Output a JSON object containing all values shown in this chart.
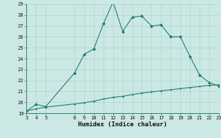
{
  "xlabel": "Humidex (Indice chaleur)",
  "bg_color": "#cce8e4",
  "line_color": "#1a7a6e",
  "marker_color": "#1a7a6e",
  "xlim": [
    3,
    23
  ],
  "ylim": [
    19,
    29
  ],
  "xticks": [
    3,
    4,
    5,
    8,
    9,
    10,
    11,
    12,
    13,
    14,
    15,
    16,
    17,
    18,
    19,
    20,
    21,
    22,
    23
  ],
  "yticks": [
    19,
    20,
    21,
    22,
    23,
    24,
    25,
    26,
    27,
    28,
    29
  ],
  "curve1_x": [
    3,
    4,
    5,
    8,
    9,
    10,
    11,
    12,
    13,
    14,
    15,
    16,
    17,
    18,
    19,
    20,
    21,
    22,
    23
  ],
  "curve1_y": [
    19.2,
    19.8,
    19.6,
    22.7,
    24.4,
    24.9,
    27.2,
    29.2,
    26.5,
    27.8,
    27.9,
    27.0,
    27.1,
    26.0,
    26.0,
    24.2,
    22.5,
    21.8,
    21.5
  ],
  "curve2_x": [
    3,
    4,
    5,
    8,
    9,
    10,
    11,
    12,
    13,
    14,
    15,
    16,
    17,
    18,
    19,
    20,
    21,
    22,
    23
  ],
  "curve2_y": [
    19.2,
    19.4,
    19.55,
    19.85,
    19.95,
    20.1,
    20.3,
    20.45,
    20.55,
    20.7,
    20.85,
    20.95,
    21.05,
    21.15,
    21.25,
    21.35,
    21.45,
    21.55,
    21.6
  ],
  "grid_color": "#aad4cc",
  "font_family": "monospace"
}
